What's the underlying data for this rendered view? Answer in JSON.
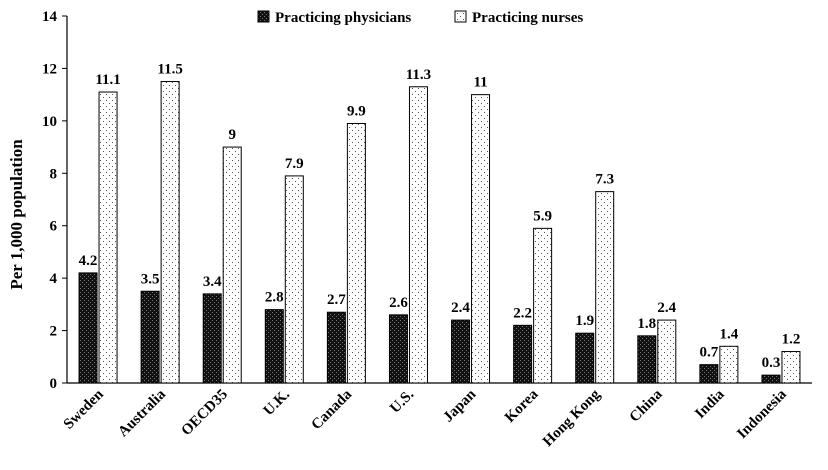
{
  "chart_data": {
    "type": "bar",
    "title": "",
    "xlabel": "",
    "ylabel": "Per 1,000 population",
    "ylim": [
      0,
      14
    ],
    "yticks": [
      0,
      2,
      4,
      6,
      8,
      10,
      12,
      14
    ],
    "grid": false,
    "legend_position": "top-center",
    "categories": [
      "Sweden",
      "Australia",
      "OECD35",
      "U.K.",
      "Canada",
      "U.S.",
      "Japan",
      "Korea",
      "Hong Kong",
      "China",
      "India",
      "Indonesia"
    ],
    "series": [
      {
        "name": "Practicing physicians",
        "pattern": "dark-crosshatch",
        "color": "#1a1a1a",
        "values": [
          4.2,
          3.5,
          3.4,
          2.8,
          2.7,
          2.6,
          2.4,
          2.2,
          1.9,
          1.8,
          0.7,
          0.3
        ],
        "labels": [
          "4.2",
          "3.5",
          "3.4",
          "2.8",
          "2.7",
          "2.6",
          "2.4",
          "2.2",
          "1.9",
          "1.8",
          "0.7",
          "0.3"
        ]
      },
      {
        "name": "Practicing nurses",
        "pattern": "light-dotted",
        "color": "#ffffff",
        "values": [
          11.1,
          11.5,
          9,
          7.9,
          9.9,
          11.3,
          11,
          5.9,
          7.3,
          2.4,
          1.4,
          1.2
        ],
        "labels": [
          "11.1",
          "11.5",
          "9",
          "7.9",
          "9.9",
          "11.3",
          "11",
          "5.9",
          "7.3",
          "2.4",
          "1.4",
          "1.2"
        ]
      }
    ]
  }
}
